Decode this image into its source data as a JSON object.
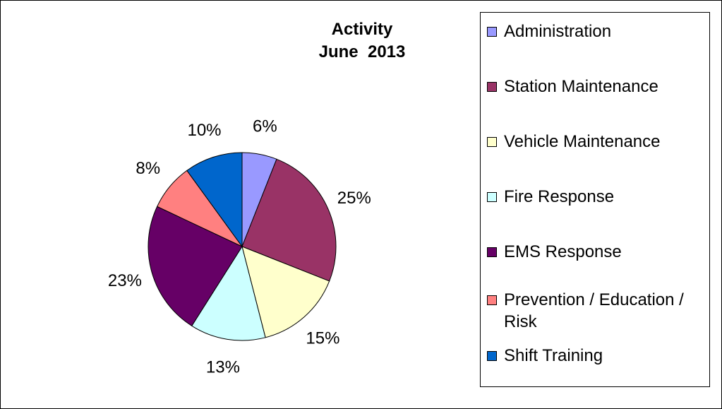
{
  "chart_data": {
    "type": "pie",
    "title": "Activity\nJune  2013",
    "legend_position": "right",
    "slices": [
      {
        "name": "Administration",
        "value": 6,
        "label": "6%",
        "color": "#9999FF"
      },
      {
        "name": "Station Maintenance",
        "value": 25,
        "label": "25%",
        "color": "#993366"
      },
      {
        "name": "Vehicle Maintenance",
        "value": 15,
        "label": "15%",
        "color": "#FFFFCC"
      },
      {
        "name": "Fire Response",
        "value": 13,
        "label": "13%",
        "color": "#CCFFFF"
      },
      {
        "name": "EMS Response",
        "value": 23,
        "label": "23%",
        "color": "#660066"
      },
      {
        "name": "Prevention / Education / Risk",
        "value": 8,
        "label": "8%",
        "color": "#FF8080"
      },
      {
        "name": "Shift Training",
        "value": 10,
        "label": "10%",
        "color": "#0066CC"
      }
    ]
  }
}
